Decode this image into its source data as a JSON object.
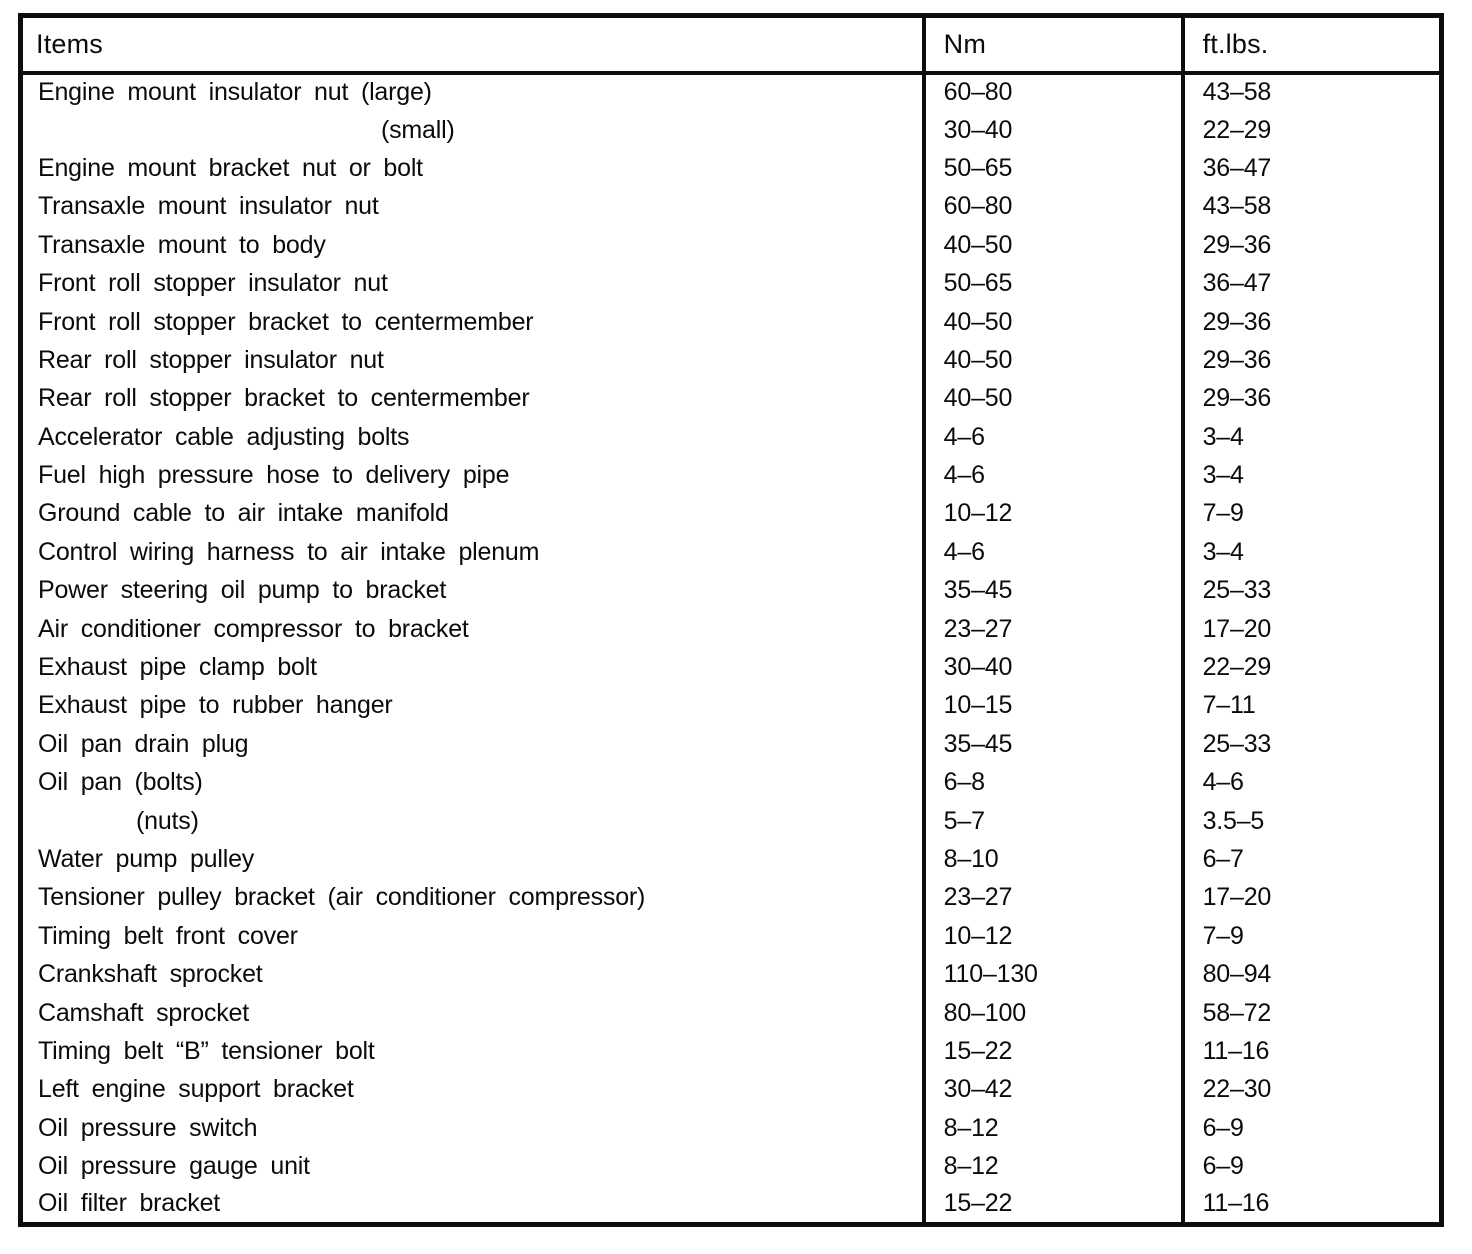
{
  "table": {
    "columns": [
      "Items",
      "Nm",
      "ft.lbs."
    ],
    "rows": [
      {
        "item": "Engine mount insulator nut (large)",
        "nm": "60–80",
        "ftlbs": "43–58"
      },
      {
        "item": "(small)",
        "nm": "30–40",
        "ftlbs": "22–29",
        "indent": "small"
      },
      {
        "item": "Engine mount bracket nut or bolt",
        "nm": "50–65",
        "ftlbs": "36–47"
      },
      {
        "item": "Transaxle mount insulator nut",
        "nm": "60–80",
        "ftlbs": "43–58"
      },
      {
        "item": "Transaxle mount to body",
        "nm": "40–50",
        "ftlbs": "29–36"
      },
      {
        "item": "Front roll stopper insulator nut",
        "nm": "50–65",
        "ftlbs": "36–47"
      },
      {
        "item": "Front roll stopper bracket to centermember",
        "nm": "40–50",
        "ftlbs": "29–36"
      },
      {
        "item": "Rear roll stopper insulator nut",
        "nm": "40–50",
        "ftlbs": "29–36"
      },
      {
        "item": "Rear roll stopper bracket to centermember",
        "nm": "40–50",
        "ftlbs": "29–36"
      },
      {
        "item": "Accelerator cable adjusting bolts",
        "nm": "4–6",
        "ftlbs": "3–4"
      },
      {
        "item": "Fuel high pressure hose to delivery pipe",
        "nm": "4–6",
        "ftlbs": "3–4"
      },
      {
        "item": "Ground cable to air intake manifold",
        "nm": "10–12",
        "ftlbs": "7–9"
      },
      {
        "item": "Control wiring harness to air intake plenum",
        "nm": "4–6",
        "ftlbs": "3–4"
      },
      {
        "item": "Power steering oil pump to bracket",
        "nm": "35–45",
        "ftlbs": "25–33"
      },
      {
        "item": "Air conditioner compressor to bracket",
        "nm": "23–27",
        "ftlbs": "17–20"
      },
      {
        "item": "Exhaust pipe clamp bolt",
        "nm": "30–40",
        "ftlbs": "22–29"
      },
      {
        "item": "Exhaust pipe to rubber hanger",
        "nm": "10–15",
        "ftlbs": "7–11"
      },
      {
        "item": "Oil pan drain plug",
        "nm": "35–45",
        "ftlbs": "25–33"
      },
      {
        "item": "Oil pan (bolts)",
        "nm": "6–8",
        "ftlbs": "4–6"
      },
      {
        "item": "(nuts)",
        "nm": "5–7",
        "ftlbs": "3.5–5",
        "indent": "nuts"
      },
      {
        "item": "Water pump pulley",
        "nm": "8–10",
        "ftlbs": "6–7"
      },
      {
        "item": "Tensioner pulley bracket (air conditioner compressor)",
        "nm": "23–27",
        "ftlbs": "17–20"
      },
      {
        "item": "Timing belt front cover",
        "nm": "10–12",
        "ftlbs": "7–9"
      },
      {
        "item": "Crankshaft sprocket",
        "nm": "110–130",
        "ftlbs": "80–94"
      },
      {
        "item": "Camshaft sprocket",
        "nm": "80–100",
        "ftlbs": "58–72"
      },
      {
        "item": "Timing belt “B” tensioner bolt",
        "nm": "15–22",
        "ftlbs": "11–16"
      },
      {
        "item": "Left engine support bracket",
        "nm": "30–42",
        "ftlbs": "22–30"
      },
      {
        "item": "Oil pressure switch",
        "nm": "8–12",
        "ftlbs": "6–9"
      },
      {
        "item": "Oil pressure gauge unit",
        "nm": "8–12",
        "ftlbs": "6–9"
      },
      {
        "item": "Oil filter bracket",
        "nm": "15–22",
        "ftlbs": "11–16"
      }
    ]
  }
}
